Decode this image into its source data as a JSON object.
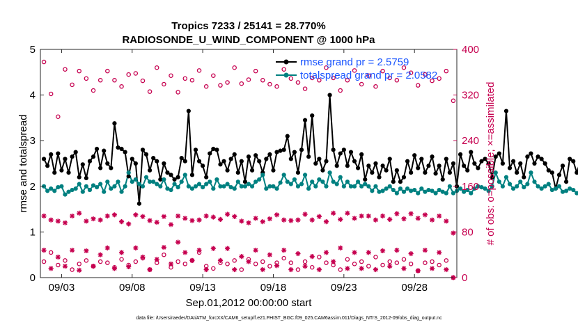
{
  "chart_data": {
    "type": "line",
    "title_line1": "Tropics 7233 / 25141 = 28.770%",
    "title_line2": "RADIOSONDE_U_WIND_COMPONENT @ 1000 hPa",
    "xlabel": "Sep.01,2012 00:00:00 start",
    "ylabel_left": "rmse and totalspread",
    "ylabel_right": "# of obs: o=possible; ×=assimilated",
    "footer": "data file: /Users/raeder/DAI/ATM_forcXX/CAM6_setup/f.e21.FHIST_BGC.f09_025.CAM6assim.011/Diags_NTrS_2012-09/obs_diag_output.nc",
    "x_range": [
      1.5,
      31.0
    ],
    "ylim_left": [
      0,
      5
    ],
    "ylim_right": [
      0,
      400
    ],
    "x_ticks": [
      3,
      8,
      13,
      18,
      23,
      28
    ],
    "x_tick_labels": [
      "09/03",
      "09/08",
      "09/13",
      "09/18",
      "09/23",
      "09/28"
    ],
    "y_ticks_left": [
      0,
      1,
      2,
      3,
      4,
      5
    ],
    "y_ticks_right": [
      0,
      80,
      160,
      240,
      320,
      400
    ],
    "colors": {
      "rmse": "#000000",
      "spread": "#008080",
      "obs": "#c6004f",
      "legend_text": "#1a55ff"
    },
    "legend": [
      {
        "name": "rmse grand pr = 2.5759"
      },
      {
        "name": "totalspread grand pr = 2.0582"
      }
    ],
    "x_start": 1.75,
    "x_step": 0.25,
    "series": [
      {
        "name": "rmse",
        "axis": "left",
        "values": [
          2.6,
          2.45,
          2.7,
          2.3,
          2.72,
          2.35,
          2.6,
          2.3,
          2.65,
          2.75,
          2.2,
          2.48,
          2.18,
          2.55,
          2.65,
          2.82,
          2.4,
          2.78,
          2.5,
          2.4,
          3.38,
          2.85,
          2.82,
          2.75,
          2.22,
          2.6,
          2.5,
          1.62,
          2.8,
          2.7,
          2.35,
          2.62,
          2.55,
          2.15,
          2.5,
          2.3,
          2.25,
          2.15,
          2.2,
          2.62,
          2.55,
          3.65,
          2.25,
          2.8,
          2.55,
          2.45,
          2.2,
          2.72,
          2.82,
          2.8,
          2.48,
          2.55,
          2.35,
          2.6,
          2.7,
          2.3,
          2.55,
          2.1,
          2.65,
          2.35,
          2.68,
          2.55,
          2.3,
          2.6,
          2.7,
          2.35,
          2.75,
          2.78,
          2.8,
          3.1,
          2.6,
          2.75,
          2.3,
          2.8,
          3.45,
          2.65,
          3.55,
          2.5,
          2.6,
          2.35,
          2.55,
          4.0,
          2.8,
          2.45,
          2.72,
          2.8,
          2.45,
          2.75,
          2.55,
          2.4,
          2.7,
          2.15,
          2.45,
          2.3,
          2.5,
          2.2,
          2.45,
          2.35,
          2.6,
          2.1,
          2.35,
          2.1,
          2.2,
          2.55,
          2.3,
          2.68,
          2.4,
          2.6,
          2.3,
          2.45,
          2.65,
          2.28,
          2.45,
          2.15,
          2.6,
          2.3,
          2.5,
          2.0,
          2.7,
          2.45,
          2.35,
          2.75,
          2.5,
          2.4,
          2.55,
          2.6,
          2.5,
          2.2,
          2.65,
          2.72,
          2.5,
          3.65,
          2.4,
          2.55,
          2.3,
          2.5,
          2.2,
          2.65,
          2.72,
          2.5,
          2.65,
          2.6,
          2.5,
          2.35,
          2.3,
          1.95,
          2.25,
          2.45,
          2.1,
          2.6,
          2.55,
          2.3,
          2.55,
          2.45,
          2.3,
          2.6,
          2.42,
          2.5,
          2.55,
          2.5,
          2.3,
          2.55,
          2.6,
          2.45,
          2.52,
          2.6,
          2.55,
          2.5
        ]
      },
      {
        "name": "totalspread",
        "axis": "left",
        "values": [
          2.0,
          1.9,
          1.95,
          1.9,
          1.98,
          2.0,
          1.82,
          1.88,
          1.92,
          1.95,
          2.05,
          1.88,
          2.0,
          1.92,
          2.02,
          1.98,
          2.05,
          1.88,
          2.1,
          1.95,
          2.0,
          2.1,
          1.88,
          2.0,
          2.3,
          2.1,
          2.15,
          2.05,
          2.0,
          2.2,
          2.1,
          2.1,
          2.05,
          2.0,
          2.15,
          1.95,
          1.92,
          2.05,
          1.98,
          2.1,
          2.25,
          2.0,
          1.95,
          2.0,
          2.05,
          1.98,
          2.05,
          2.1,
          1.95,
          2.15,
          2.0,
          2.0,
          2.05,
          1.98,
          1.95,
          2.1,
          2.0,
          2.0,
          2.05,
          2.0,
          2.1,
          2.15,
          2.25,
          1.95,
          2.0,
          2.0,
          1.95,
          2.08,
          2.25,
          2.1,
          2.05,
          2.15,
          2.0,
          2.05,
          2.25,
          1.95,
          2.1,
          2.0,
          2.15,
          2.1,
          2.0,
          2.3,
          2.1,
          2.05,
          2.2,
          2.0,
          2.1,
          2.0,
          2.0,
          2.1,
          2.0,
          2.05,
          2.0,
          1.9,
          2.0,
          1.88,
          1.9,
          1.95,
          2.0,
          1.92,
          1.85,
          1.95,
          1.88,
          1.95,
          1.9,
          1.92,
          1.85,
          1.95,
          1.88,
          1.92,
          1.9,
          1.85,
          1.92,
          1.88,
          1.85,
          2.0,
          1.85,
          1.9,
          1.95,
          1.88,
          1.92,
          1.85,
          1.95,
          2.0,
          1.98,
          1.95,
          1.9,
          2.0,
          2.3,
          2.1,
          2.0,
          2.2,
          2.05,
          1.95,
          2.0,
          2.1,
          1.98,
          2.05,
          2.3,
          2.1,
          2.0,
          1.95,
          2.0,
          2.05,
          1.92,
          1.95,
          2.0,
          1.88,
          1.9,
          1.95,
          1.92,
          1.85,
          1.9,
          1.98,
          1.92,
          1.85,
          1.95,
          1.9,
          1.9,
          1.95,
          1.9,
          1.95,
          1.85,
          1.92,
          1.88,
          1.95
        ]
      }
    ],
    "obs": {
      "axis": "right",
      "x_start": 1.75,
      "x_step": 0.5,
      "possible_high": [
        378,
        322,
        282,
        365,
        338,
        362,
        349,
        328,
        346,
        362,
        346,
        335,
        356,
        358,
        345,
        326,
        368,
        339,
        354,
        325,
        349,
        346,
        363,
        335,
        354,
        337,
        342,
        368,
        340,
        347,
        362,
        346,
        339,
        335,
        365,
        349,
        342,
        331,
        350,
        346,
        368,
        350,
        328,
        346,
        363,
        339,
        354,
        335,
        362,
        350,
        346,
        368,
        359,
        337,
        356,
        345,
        349,
        362,
        310
      ],
      "possible_low": [
        28,
        44,
        22,
        30,
        14,
        24,
        30,
        20,
        28,
        26,
        18,
        32,
        22,
        28,
        34,
        14,
        26,
        40,
        18,
        28,
        24,
        30,
        44,
        20,
        16,
        26,
        24,
        30,
        14,
        32,
        24,
        28,
        20,
        26,
        34,
        26,
        14,
        28,
        18,
        36,
        26,
        22,
        14,
        32,
        24,
        28,
        20,
        36,
        22,
        28,
        26,
        32,
        24,
        12,
        26,
        28,
        22,
        30,
        0
      ],
      "assimilated_high": [
        108,
        101,
        99,
        96,
        108,
        113,
        99,
        103,
        101,
        108,
        110,
        98,
        94,
        110,
        107,
        100,
        97,
        107,
        93,
        108,
        104,
        100,
        101,
        108,
        106,
        102,
        111,
        107,
        99,
        96,
        104,
        98,
        103,
        110,
        101,
        100,
        101,
        111,
        101,
        107,
        98,
        113,
        102,
        113,
        104,
        108,
        108,
        101,
        108,
        102,
        112,
        103,
        112,
        104,
        110,
        101,
        108,
        99,
        78
      ],
      "assimilated_low": [
        48,
        16,
        36,
        20,
        48,
        13,
        47,
        20,
        40,
        52,
        16,
        44,
        19,
        52,
        36,
        14,
        32,
        53,
        24,
        62,
        44,
        30,
        48,
        14,
        51,
        30,
        51,
        14,
        37,
        28,
        48,
        14,
        40,
        21,
        48,
        14,
        42,
        20,
        37,
        14,
        44,
        28,
        52,
        16,
        44,
        16,
        44,
        14,
        47,
        20,
        48,
        16,
        42,
        12,
        48,
        16,
        44,
        14,
        0
      ]
    }
  }
}
